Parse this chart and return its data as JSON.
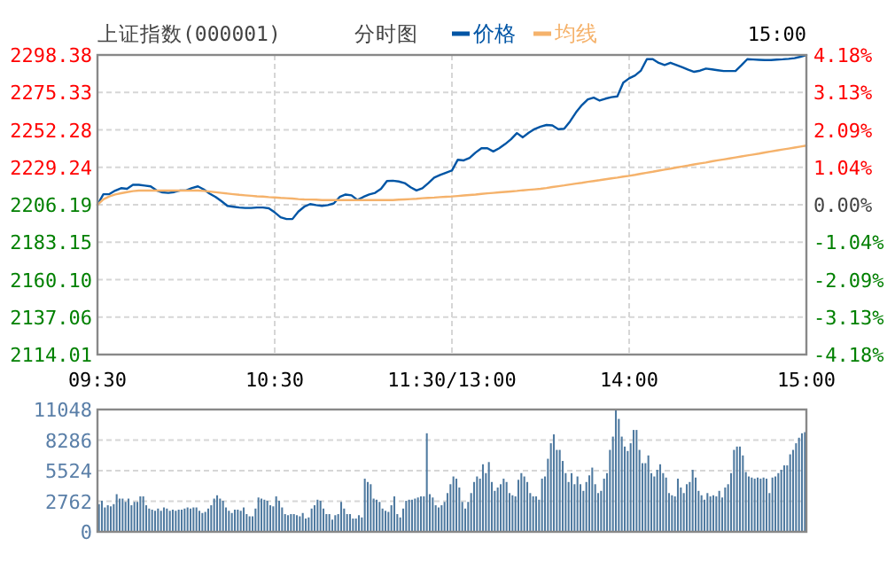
{
  "chart_data": [
    {
      "type": "line",
      "title": "上证指数(000001)",
      "subtitle": "分时图",
      "annotations": [
        "15:00"
      ],
      "legend": "top",
      "grid": true,
      "categories": [
        "09:30",
        null,
        null,
        null,
        null,
        null,
        null,
        null,
        null,
        null,
        null,
        null,
        null,
        null,
        null,
        null,
        null,
        null,
        null,
        null,
        null,
        null,
        null,
        null,
        null,
        null,
        null,
        null,
        null,
        null,
        "10:30",
        null,
        null,
        null,
        null,
        null,
        null,
        null,
        null,
        null,
        null,
        null,
        null,
        null,
        null,
        null,
        null,
        null,
        null,
        null,
        null,
        null,
        null,
        null,
        null,
        null,
        null,
        null,
        null,
        null,
        "11:30/13:00",
        null,
        null,
        null,
        null,
        null,
        null,
        null,
        null,
        null,
        null,
        null,
        null,
        null,
        null,
        null,
        null,
        null,
        null,
        null,
        null,
        null,
        null,
        null,
        null,
        null,
        null,
        null,
        null,
        null,
        "14:00",
        null,
        null,
        null,
        null,
        null,
        null,
        null,
        null,
        null,
        null,
        null,
        null,
        null,
        null,
        null,
        null,
        null,
        null,
        null,
        null,
        null,
        null,
        null,
        null,
        null,
        null,
        null,
        null,
        null,
        "15:00"
      ],
      "ylim": [
        2114.01,
        2298.38
      ],
      "yticks": [
        {
          "value": 2114.01,
          "label": "2114.01"
        },
        {
          "value": 2137.06,
          "label": "2137.06"
        },
        {
          "value": 2160.1,
          "label": "2160.10"
        },
        {
          "value": 2183.15,
          "label": "2183.15"
        },
        {
          "value": 2206.19,
          "label": "2206.19"
        },
        {
          "value": 2229.24,
          "label": "2229.24"
        },
        {
          "value": 2252.28,
          "label": "2252.28"
        },
        {
          "value": 2275.33,
          "label": "2275.33"
        },
        {
          "value": 2298.38,
          "label": "2298.38"
        }
      ],
      "y2lim": [
        -4.18,
        4.18
      ],
      "y2ticks": [
        {
          "value": -4.18,
          "label": "-4.18%"
        },
        {
          "value": -3.13,
          "label": "-3.13%"
        },
        {
          "value": -2.09,
          "label": "-2.09%"
        },
        {
          "value": -1.04,
          "label": "-1.04%"
        },
        {
          "value": 0,
          "label": "0.00%"
        },
        {
          "value": 1.04,
          "label": "1.04%"
        },
        {
          "value": 2.09,
          "label": "2.09%"
        },
        {
          "value": 3.13,
          "label": "3.13%"
        },
        {
          "value": 4.18,
          "label": "4.18%"
        }
      ],
      "series": [
        {
          "name": "价格",
          "color": "#0055a5",
          "values": [
            2206.2,
            2212.7,
            2212.7,
            2214.9,
            2216.4,
            2216,
            2218.5,
            2218.5,
            2218,
            2217.5,
            2215,
            2213.8,
            2213.5,
            2214,
            2215,
            2215,
            2216.5,
            2217.5,
            2215.6,
            2213,
            2211,
            2208.4,
            2205.5,
            2205,
            2204.5,
            2204.2,
            2204.2,
            2204.5,
            2204.5,
            2204,
            2201.5,
            2198.5,
            2197.4,
            2197.4,
            2202,
            2205,
            2206.6,
            2206,
            2205.5,
            2206,
            2207,
            2211,
            2212.5,
            2212,
            2209.1,
            2211,
            2212.5,
            2213.5,
            2216,
            2220.8,
            2221,
            2220.5,
            2219.5,
            2217,
            2215,
            2216.4,
            2219.5,
            2222.9,
            2224.5,
            2225.9,
            2227.3,
            2233.9,
            2233.5,
            2235,
            2238.3,
            2241,
            2241,
            2239,
            2241,
            2243.5,
            2246.5,
            2250.3,
            2247.7,
            2250.5,
            2252.8,
            2254.3,
            2255.3,
            2255,
            2252.7,
            2253,
            2257.5,
            2263,
            2267.5,
            2271,
            2272.1,
            2270.3,
            2271.5,
            2272.4,
            2272.9,
            2281.3,
            2284,
            2285.8,
            2288.8,
            2295.8,
            2295.8,
            2293.5,
            2292.2,
            2293.6,
            2292.2,
            2290.8,
            2289.3,
            2288,
            2288.7,
            2290,
            2289.5,
            2289,
            2288.5,
            2288.5,
            2288.5,
            2292,
            2295.8,
            2295.6,
            2295.4,
            2295.2,
            2295.2,
            2295.5,
            2295.7,
            2296,
            2296.4,
            2297.3,
            2298.3
          ]
        },
        {
          "name": "均线",
          "color": "#f5b26b",
          "values": [
            2206.2,
            2209.5,
            2211.3,
            2212.5,
            2213.3,
            2214,
            2214.6,
            2214.9,
            2214.9,
            2214.9,
            2214.9,
            2214.9,
            2214.9,
            2214.9,
            2214.9,
            2214.9,
            2214.9,
            2214.9,
            2214.7,
            2214.3,
            2213.9,
            2213.5,
            2213.1,
            2212.7,
            2212.3,
            2212.0,
            2211.7,
            2211.4,
            2211.2,
            2210.9,
            2210.7,
            2210.4,
            2210.2,
            2210,
            2209.7,
            2209.5,
            2209.4,
            2209.3,
            2209.1,
            2209.1,
            2209.1,
            2209.1,
            2209.1,
            2209.1,
            2209.1,
            2209.1,
            2209.1,
            2209.1,
            2209.1,
            2209.1,
            2209.1,
            2209.3,
            2209.5,
            2209.7,
            2209.9,
            2210.2,
            2210.4,
            2210.6,
            2210.9,
            2211.1,
            2211.3,
            2211.6,
            2211.9,
            2212.2,
            2212.5,
            2212.9,
            2213.2,
            2213.5,
            2213.8,
            2214.1,
            2214.4,
            2214.7,
            2215.1,
            2215.4,
            2215.7,
            2216.0,
            2216.5,
            2217.1,
            2217.6,
            2218.1,
            2218.7,
            2219.2,
            2219.7,
            2220.3,
            2220.8,
            2221.3,
            2221.9,
            2222.4,
            2222.9,
            2223.5,
            2224.0,
            2224.6,
            2225.3,
            2225.9,
            2226.5,
            2227.2,
            2227.8,
            2228.4,
            2229.1,
            2229.7,
            2230.3,
            2231,
            2231.6,
            2232.2,
            2232.9,
            2233.5,
            2234.1,
            2234.7,
            2235.3,
            2235.9,
            2236.5,
            2237.1,
            2237.7,
            2238.4,
            2239,
            2239.6,
            2240.2,
            2240.8,
            2241.4,
            2242,
            2242.6
          ]
        }
      ]
    },
    {
      "type": "bar",
      "grid": "y",
      "categories": [
        null,
        null,
        null,
        null,
        null,
        null,
        null,
        null,
        null,
        null,
        null,
        null,
        null,
        null,
        null,
        null,
        null,
        null,
        null,
        null,
        null,
        null,
        null,
        null,
        null,
        null,
        null,
        null,
        null,
        null,
        null,
        null,
        null,
        null,
        null,
        null,
        null,
        null,
        null,
        null,
        null,
        null,
        null,
        null,
        null,
        null,
        null,
        null,
        null,
        null,
        null,
        null,
        null,
        null,
        null,
        null,
        null,
        null,
        null,
        null,
        null,
        null,
        null,
        null,
        null,
        null,
        null,
        null,
        null,
        null,
        null,
        null,
        null,
        null,
        null,
        null,
        null,
        null,
        null,
        null,
        null,
        null,
        null,
        null,
        null,
        null,
        null,
        null,
        null,
        null,
        null,
        null,
        null,
        null,
        null,
        null,
        null,
        null,
        null,
        null,
        null,
        null,
        null,
        null,
        null,
        null,
        null,
        null,
        null,
        null,
        null,
        null,
        null,
        null,
        null,
        null,
        null,
        null,
        null,
        null,
        null,
        null,
        null,
        null,
        null,
        null,
        null,
        null,
        null,
        null,
        null,
        null,
        null,
        null,
        null,
        null,
        null,
        null,
        null,
        null,
        null,
        null,
        null,
        null,
        null,
        null,
        null,
        null,
        null,
        null,
        null,
        null,
        null,
        null,
        null,
        null,
        null,
        null,
        null,
        null,
        null,
        null,
        null,
        null,
        null,
        null,
        null,
        null,
        null,
        null,
        null,
        null,
        null,
        null,
        null,
        null,
        null,
        null,
        null,
        null,
        null,
        null,
        null,
        null,
        null,
        null,
        null,
        null,
        null,
        null,
        null,
        null,
        null,
        null,
        null,
        null,
        null,
        null,
        null,
        null,
        null,
        null,
        null,
        null,
        null,
        null,
        null,
        null,
        null,
        null,
        null,
        null,
        null,
        null,
        null,
        null,
        null,
        null,
        null,
        null,
        null,
        null,
        null,
        null,
        null,
        null,
        null,
        null,
        null,
        null,
        null,
        null,
        null,
        null,
        null,
        null,
        null,
        null,
        null,
        null
      ],
      "ylim": [
        0,
        11048
      ],
      "yticks": [
        0,
        2762,
        5524,
        8286,
        11048
      ],
      "series": [
        {
          "color": "#4f7aa0",
          "values": [
            2500,
            2800,
            2200,
            2400,
            2300,
            2500,
            3400,
            3000,
            3000,
            2700,
            3000,
            2400,
            2700,
            2700,
            3200,
            3200,
            2400,
            2100,
            2000,
            1900,
            2100,
            1900,
            2200,
            2100,
            1900,
            2000,
            1900,
            2000,
            2000,
            2100,
            2200,
            2100,
            2200,
            2200,
            1900,
            1700,
            1800,
            2100,
            2400,
            3000,
            3300,
            3000,
            2800,
            2200,
            1900,
            1700,
            2000,
            2000,
            1900,
            2200,
            1600,
            1400,
            1400,
            2100,
            3100,
            3000,
            2900,
            2800,
            2400,
            2300,
            3200,
            2800,
            2200,
            1600,
            1500,
            1600,
            1600,
            1500,
            1400,
            1700,
            1200,
            1300,
            2100,
            2400,
            2900,
            2800,
            2100,
            1600,
            1600,
            1100,
            1500,
            1600,
            2700,
            2100,
            1600,
            1600,
            1200,
            1200,
            1500,
            1300,
            4800,
            4500,
            4300,
            3000,
            2900,
            2700,
            2100,
            1900,
            1800,
            2400,
            3200,
            1600,
            1300,
            2100,
            2800,
            2900,
            2900,
            3000,
            3100,
            3200,
            3200,
            8900,
            3400,
            3100,
            2400,
            2200,
            2400,
            2700,
            3500,
            4300,
            5000,
            4800,
            4000,
            2700,
            2100,
            2700,
            3500,
            4500,
            5000,
            4800,
            6100,
            5300,
            6300,
            4500,
            3700,
            4000,
            4300,
            4800,
            4500,
            3500,
            3300,
            3200,
            4700,
            5300,
            5000,
            4500,
            3500,
            3200,
            3200,
            2900,
            4800,
            5000,
            6600,
            8000,
            8800,
            7400,
            7400,
            6400,
            5300,
            4500,
            5300,
            4300,
            5000,
            4300,
            3700,
            4500,
            5100,
            5800,
            4300,
            3500,
            3700,
            4800,
            5300,
            7400,
            8600,
            11000,
            10200,
            8600,
            7700,
            7300,
            8000,
            9200,
            9200,
            7400,
            6200,
            6200,
            6900,
            5300,
            5000,
            5600,
            6100,
            5300,
            4900,
            3500,
            3300,
            3200,
            4800,
            4000,
            3500,
            4300,
            4500,
            5600,
            4900,
            3700,
            3300,
            2900,
            3500,
            3200,
            3300,
            3200,
            3700,
            3100,
            4000,
            4300,
            5300,
            7400,
            7700,
            7700,
            6900,
            5400,
            5000,
            4900,
            4800,
            4900,
            4800,
            4900,
            4800,
            3500,
            4900,
            5000,
            5300,
            5600,
            6000,
            6000,
            7000,
            7400,
            8000,
            8500,
            8900,
            9000
          ]
        }
      ]
    }
  ]
}
